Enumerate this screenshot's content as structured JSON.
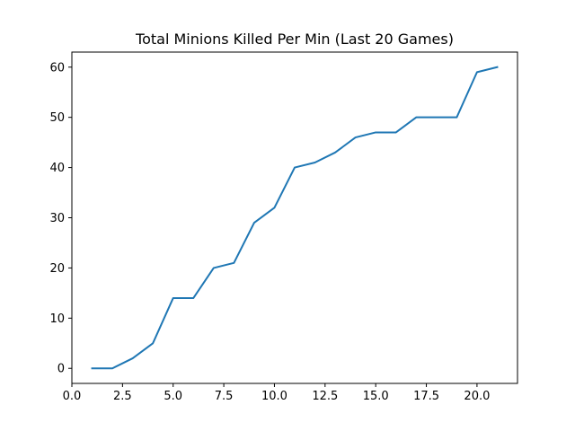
{
  "chart_data": {
    "type": "line",
    "title": "Total Minions Killed Per Min (Last 20 Games)",
    "xlabel": "",
    "ylabel": "",
    "xlim": [
      0.0,
      22.0
    ],
    "ylim": [
      -3.0,
      63.0
    ],
    "x_ticks": [
      0.0,
      2.5,
      5.0,
      7.5,
      10.0,
      12.5,
      15.0,
      17.5,
      20.0
    ],
    "x_tick_labels": [
      "0.0",
      "2.5",
      "5.0",
      "7.5",
      "10.0",
      "12.5",
      "15.0",
      "17.5",
      "20.0"
    ],
    "y_ticks": [
      0,
      10,
      20,
      30,
      40,
      50,
      60
    ],
    "y_tick_labels": [
      "0",
      "10",
      "20",
      "30",
      "40",
      "50",
      "60"
    ],
    "grid": false,
    "legend": "none",
    "line_color": "#1f77b4",
    "series": [
      {
        "x": [
          1,
          2,
          3,
          4,
          5,
          6,
          7,
          8,
          9,
          10,
          11,
          12,
          13,
          14,
          15,
          16,
          17,
          18,
          19,
          20,
          21
        ],
        "values": [
          0,
          0,
          2,
          5,
          14,
          14,
          20,
          21,
          29,
          32,
          40,
          41,
          43,
          46,
          47,
          47,
          50,
          50,
          50,
          59,
          60
        ]
      }
    ]
  }
}
